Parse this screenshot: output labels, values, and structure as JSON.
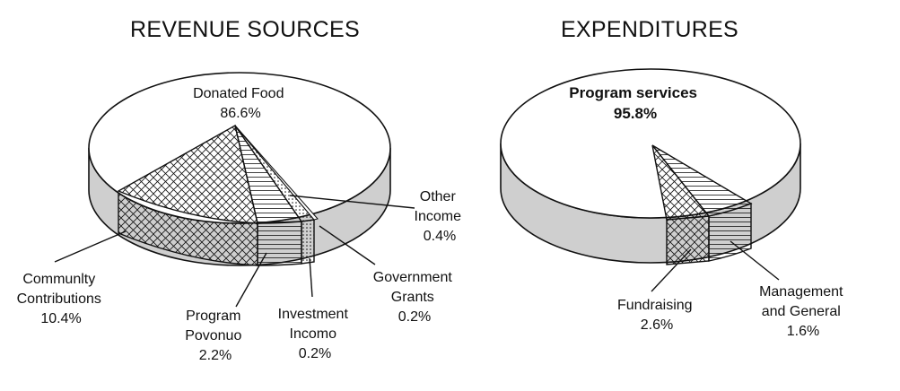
{
  "chart_data": [
    {
      "type": "pie",
      "title": "REVENUE SOURCES",
      "slices": [
        {
          "label_lines": [
            "Donated Food"
          ],
          "value": "86.6%"
        },
        {
          "label_lines": [
            "Communlty",
            "Contributions"
          ],
          "value": "10.4%"
        },
        {
          "label_lines": [
            "Program",
            "Povonuo"
          ],
          "value": "2.2%"
        },
        {
          "label_lines": [
            "Investment",
            "Incomo"
          ],
          "value": "0.2%"
        },
        {
          "label_lines": [
            "Government",
            "Grants"
          ],
          "value": "0.2%"
        },
        {
          "label_lines": [
            "Other",
            "Income"
          ],
          "value": "0.4%"
        }
      ]
    },
    {
      "type": "pie",
      "title": "EXPENDITURES",
      "slices": [
        {
          "label_lines": [
            "Program services"
          ],
          "value": "95.8%"
        },
        {
          "label_lines": [
            "Fundraising"
          ],
          "value": "2.6%"
        },
        {
          "label_lines": [
            "Management",
            "and General"
          ],
          "value": "1.6%"
        }
      ]
    }
  ],
  "colors": {
    "outline": "#111111",
    "side": "#cfcfcf",
    "top": "#ffffff"
  }
}
